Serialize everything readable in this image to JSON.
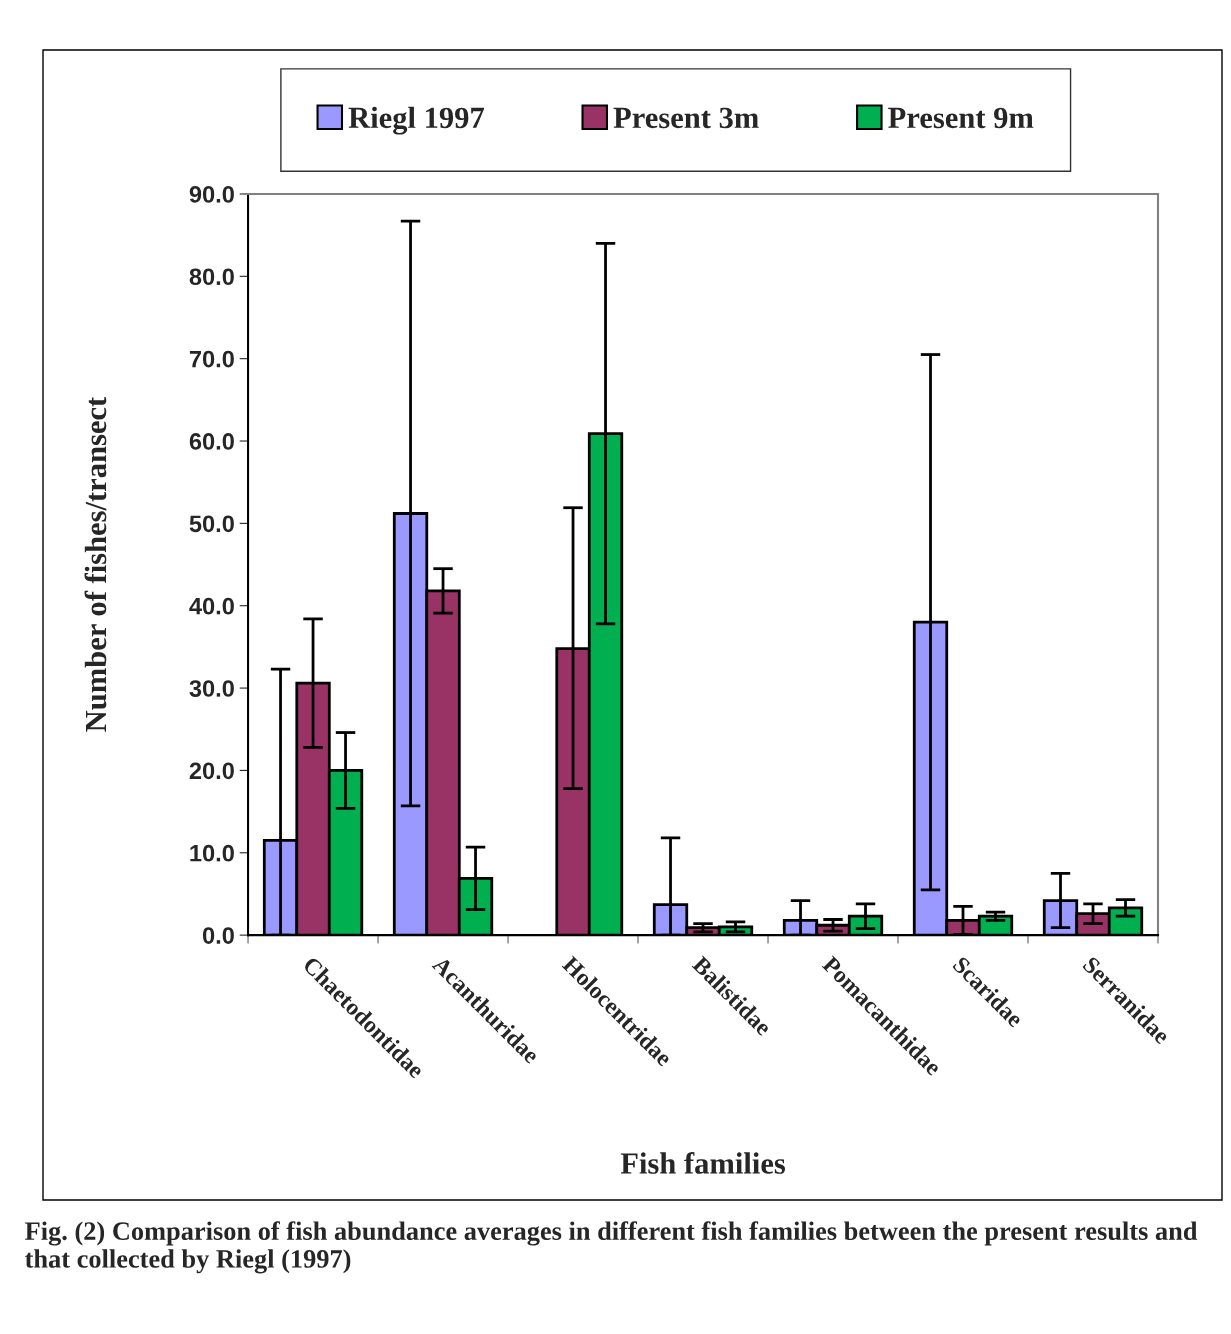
{
  "chart_data": {
    "type": "bar",
    "xlabel": "Fish families",
    "ylabel": "Number of fishes/transect",
    "categories": [
      "Chaetodontidae",
      "Acanthuridae",
      "Holocentridae",
      "Balistidae",
      "Pomacanthidae",
      "Scaridae",
      "Serranidae"
    ],
    "series": [
      {
        "name": "Riegl 1997",
        "color": "#9999ff",
        "values": [
          11.5,
          51.2,
          null,
          3.7,
          1.8,
          38.0,
          4.2
        ],
        "errors": [
          [
            0,
            32.3
          ],
          [
            15.7,
            86.7
          ],
          null,
          [
            0,
            11.8
          ],
          [
            0,
            4.2
          ],
          [
            5.5,
            70.5
          ],
          [
            0.9,
            7.5
          ]
        ]
      },
      {
        "name": "Present 3m",
        "color": "#993366",
        "values": [
          30.6,
          41.8,
          34.8,
          0.9,
          1.2,
          1.8,
          2.6
        ],
        "errors": [
          [
            22.8,
            38.4
          ],
          [
            39.1,
            44.5
          ],
          [
            17.8,
            51.9
          ],
          [
            0.4,
            1.4
          ],
          [
            0.5,
            1.9
          ],
          [
            0.1,
            3.5
          ],
          [
            1.4,
            3.8
          ]
        ]
      },
      {
        "name": "Present 9m",
        "color": "#00b050",
        "values": [
          20.0,
          6.9,
          60.9,
          1.0,
          2.3,
          2.3,
          3.3
        ],
        "errors": [
          [
            15.4,
            24.6
          ],
          [
            3.1,
            10.7
          ],
          [
            37.8,
            84.0
          ],
          [
            0.4,
            1.6
          ],
          [
            0.8,
            3.8
          ],
          [
            1.8,
            2.8
          ],
          [
            2.3,
            4.3
          ]
        ]
      }
    ],
    "ylim": [
      0,
      90
    ],
    "yticks": [
      {
        "value": 0,
        "label": "0.0"
      },
      {
        "value": 10,
        "label": "10.0"
      },
      {
        "value": 20,
        "label": "20.0"
      },
      {
        "value": 30,
        "label": "30.0"
      },
      {
        "value": 40,
        "label": "40.0"
      },
      {
        "value": 50,
        "label": "50.0"
      },
      {
        "value": 60,
        "label": "60.0"
      },
      {
        "value": 70,
        "label": "70.0"
      },
      {
        "value": 80,
        "label": "80.0"
      },
      {
        "value": 90,
        "label": "90.0"
      }
    ],
    "grid": false,
    "legend": "top",
    "annotations": [
      "Fig. (2) Comparison of fish abundance averages in different fish families between the present results and that collected by Riegl (1997)"
    ]
  }
}
